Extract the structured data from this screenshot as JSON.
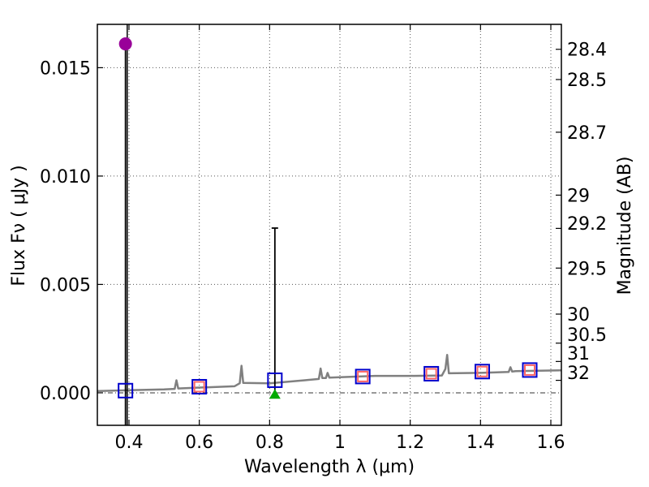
{
  "chart_data": {
    "type": "scatter",
    "xlabel": "Wavelength  λ (μm)",
    "ylabel": "Flux  Fν  ( μJy )",
    "ylabel_right": "Magnitude (AB)",
    "xlim": [
      0.31,
      1.63
    ],
    "ylim": [
      -0.0015,
      0.017
    ],
    "x_ticks": [
      0.4,
      0.6,
      0.8,
      1.0,
      1.2,
      1.4,
      1.6
    ],
    "x_tick_labels": [
      "0.4",
      "0.6",
      "0.8",
      "1",
      "1.2",
      "1.4",
      "1.6"
    ],
    "y_ticks": [
      0.0,
      0.005,
      0.01,
      0.015
    ],
    "y_tick_labels": [
      "0.000",
      "0.005",
      "0.010",
      "0.015"
    ],
    "mag_ticks": [
      "28.4",
      "28.5",
      "28.7",
      "29",
      "29.2",
      "29.5",
      "30",
      "30.5",
      "31",
      "32"
    ],
    "grid": true,
    "series": [
      {
        "name": "model-spectrum",
        "kind": "line",
        "color": "#808080",
        "x": [
          0.31,
          0.4,
          0.5,
          0.53,
          0.535,
          0.54,
          0.6,
          0.7,
          0.715,
          0.72,
          0.725,
          0.8,
          0.9,
          0.94,
          0.945,
          0.95,
          0.96,
          0.965,
          0.97,
          1.0,
          1.1,
          1.2,
          1.29,
          1.3,
          1.305,
          1.31,
          1.4,
          1.48,
          1.485,
          1.49,
          1.5,
          1.63
        ],
        "y": [
          8e-05,
          0.00012,
          0.00016,
          0.00018,
          0.00058,
          0.0002,
          0.00024,
          0.0003,
          0.00044,
          0.00125,
          0.00046,
          0.00044,
          0.00058,
          0.00064,
          0.00112,
          0.00068,
          0.00068,
          0.00092,
          0.0007,
          0.00072,
          0.00078,
          0.00078,
          0.0008,
          0.0011,
          0.00175,
          0.0009,
          0.00092,
          0.00096,
          0.00118,
          0.00098,
          0.001,
          0.00104
        ]
      },
      {
        "name": "model-photometry",
        "kind": "open-square",
        "color": "#0000cc",
        "x": [
          0.39,
          0.6,
          0.815,
          1.065,
          1.26,
          1.405,
          1.54
        ],
        "y": [
          0.0001,
          0.00028,
          0.00058,
          0.00075,
          0.00088,
          0.00098,
          0.00105
        ]
      },
      {
        "name": "observed-photometry",
        "kind": "open-square",
        "color": "#ff6666",
        "x": [
          0.6,
          1.065,
          1.26,
          1.405,
          1.54
        ],
        "y": [
          0.00028,
          0.00075,
          0.00088,
          0.00098,
          0.00105
        ]
      },
      {
        "name": "upper-limit-point",
        "kind": "circle",
        "color": "#990099",
        "x": [
          0.39
        ],
        "y": [
          0.0161
        ]
      },
      {
        "name": "detection-point",
        "kind": "triangle",
        "color": "#00aa00",
        "x": [
          0.815
        ],
        "y": [
          -5e-05
        ]
      }
    ],
    "error_bars": [
      {
        "x": 0.39,
        "y_low": -0.0015,
        "y_high": 0.0161,
        "cap": false
      },
      {
        "x": 0.815,
        "y_low": -5e-05,
        "y_high": 0.0076,
        "cap": true
      }
    ],
    "reference_lines": [
      {
        "orientation": "horizontal",
        "y": 0.0,
        "style": "dash-dot"
      },
      {
        "orientation": "vertical",
        "x": 0.395,
        "style": "solid"
      }
    ]
  }
}
